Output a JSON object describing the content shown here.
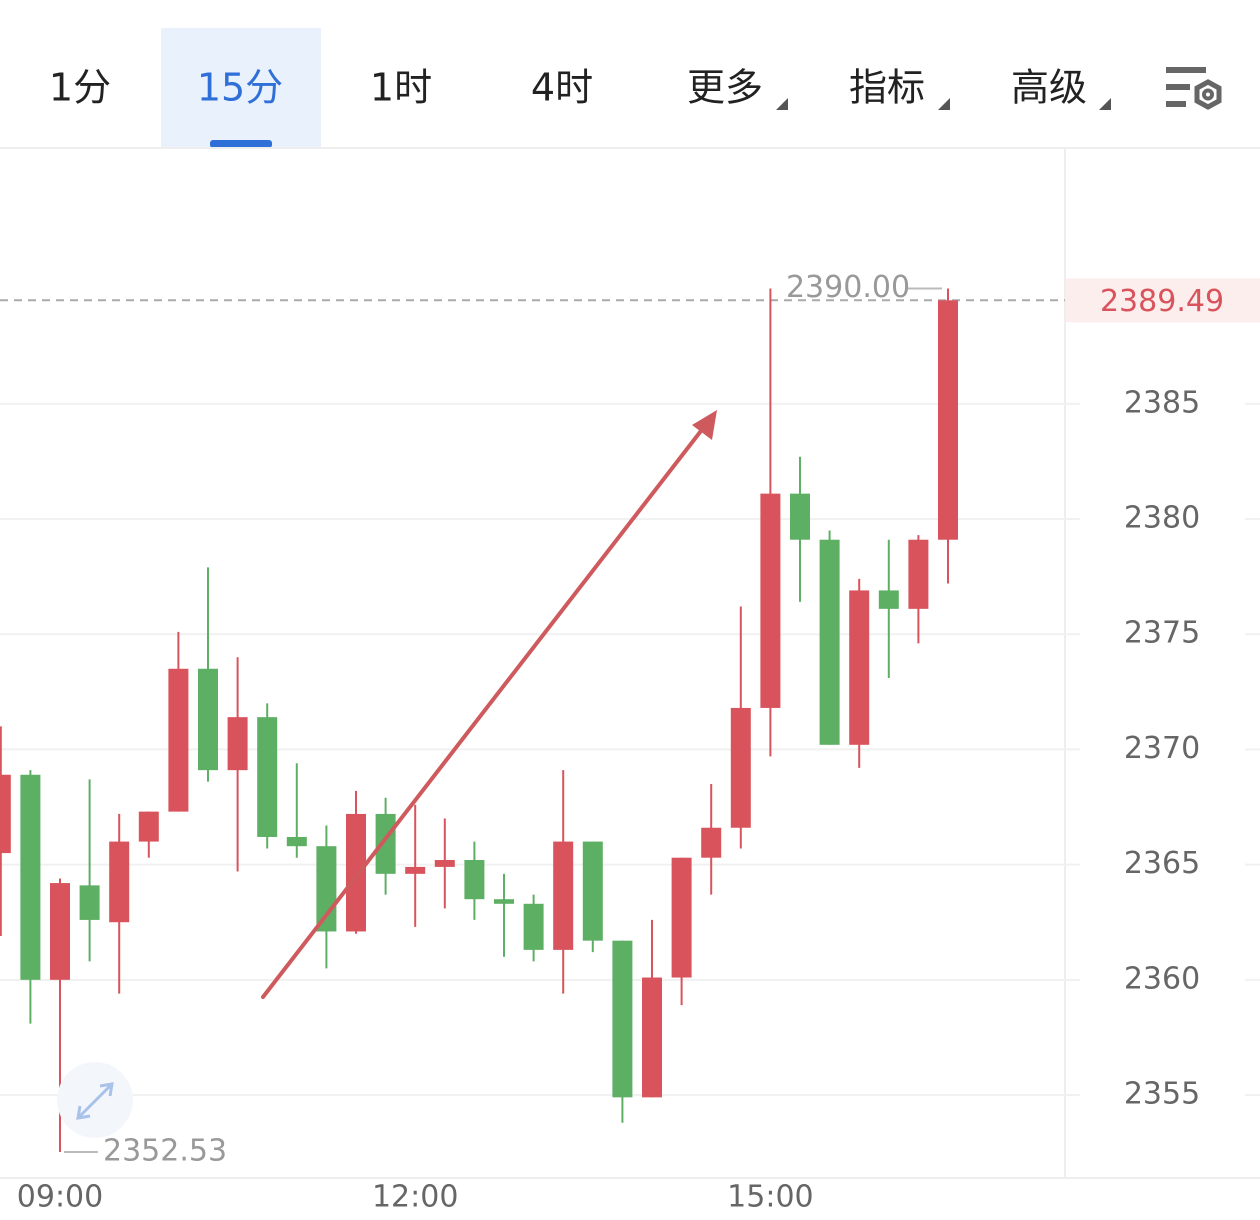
{
  "tabs": [
    "1分",
    "15分",
    "1时",
    "4时",
    "更多",
    "指标",
    "高级"
  ],
  "chart_data": {
    "type": "candlestick",
    "categories": [
      null,
      null,
      "09:00",
      null,
      null,
      null,
      null,
      null,
      null,
      null,
      null,
      null,
      null,
      null,
      "12:00",
      null,
      null,
      null,
      null,
      null,
      null,
      null,
      null,
      null,
      null,
      null,
      "15:00",
      null,
      null,
      null,
      null,
      null,
      null
    ],
    "open": [
      2365.5,
      2368.9,
      2360.0,
      2364.1,
      2362.5,
      2366.0,
      2367.3,
      2373.5,
      2369.1,
      2371.4,
      2366.2,
      2365.8,
      2362.1,
      2367.2,
      2364.6,
      2364.9,
      2365.2,
      2363.5,
      2363.3,
      2361.3,
      2366.0,
      2361.7,
      2354.9,
      2360.1,
      2365.3,
      2366.6,
      2371.8,
      2381.1,
      2379.1,
      2370.2,
      2376.9,
      2376.1,
      2379.1
    ],
    "high": [
      2371.0,
      2369.1,
      2364.4,
      2368.7,
      2367.2,
      2367.3,
      2375.1,
      2377.9,
      2374.0,
      2372.0,
      2369.4,
      2366.7,
      2368.2,
      2367.9,
      2367.6,
      2367.0,
      2366.0,
      2364.6,
      2363.7,
      2369.1,
      2366.0,
      2361.7,
      2362.6,
      2365.3,
      2368.5,
      2376.2,
      2390.0,
      2382.7,
      2379.5,
      2377.4,
      2379.1,
      2379.3,
      2390.0
    ],
    "low": [
      2361.9,
      2358.1,
      2352.53,
      2360.8,
      2359.4,
      2365.3,
      2367.3,
      2368.6,
      2364.7,
      2365.7,
      2365.3,
      2360.5,
      2362.0,
      2363.7,
      2362.3,
      2363.1,
      2362.6,
      2361.0,
      2360.8,
      2359.4,
      2361.2,
      2353.8,
      2354.9,
      2358.9,
      2363.7,
      2365.7,
      2369.7,
      2376.4,
      2370.2,
      2369.2,
      2373.1,
      2374.6,
      2377.2
    ],
    "close": [
      2368.9,
      2360.0,
      2364.2,
      2362.6,
      2366.0,
      2367.3,
      2373.5,
      2369.1,
      2371.4,
      2366.2,
      2365.8,
      2362.1,
      2367.2,
      2364.6,
      2364.9,
      2365.2,
      2363.5,
      2363.3,
      2361.3,
      2366.0,
      2361.7,
      2354.9,
      2360.1,
      2365.3,
      2366.6,
      2371.8,
      2381.1,
      2379.1,
      2370.2,
      2376.9,
      2376.1,
      2379.1,
      2389.49
    ],
    "up_color": "#d9535c",
    "down_color": "#5daf64",
    "ylim": [
      2351.4,
      2396.1
    ],
    "yticks": [
      2355,
      2360,
      2365,
      2370,
      2375,
      2380,
      2385
    ],
    "grid": true,
    "high_label": {
      "value": 2390,
      "label": "2390.00"
    },
    "low_label": 2352.53,
    "last_price": 2389.49
  }
}
